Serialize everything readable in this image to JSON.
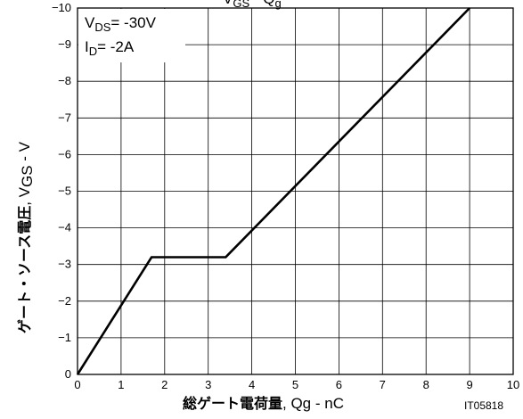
{
  "chart_data": {
    "type": "line",
    "title_fragment": {
      "main": "V",
      "sub": "GS",
      "rest": " - Q",
      "sub2": "g"
    },
    "xlabel": {
      "main": "総ゲート電荷量",
      "unit": ", Qg - nC"
    },
    "ylabel": {
      "main": "ゲート・ソース電圧",
      "unit_prefix": ", V",
      "unit_sub": "GS",
      "unit_suffix": " - V"
    },
    "xlim": [
      0,
      10
    ],
    "ylim": [
      0,
      -10
    ],
    "x_ticks": [
      "0",
      "1",
      "2",
      "3",
      "4",
      "5",
      "6",
      "7",
      "8",
      "9",
      "10"
    ],
    "y_ticks": [
      "0",
      "−1",
      "−2",
      "−3",
      "−4",
      "−5",
      "−6",
      "−7",
      "−8",
      "−9",
      "−10"
    ],
    "grid": true,
    "conditions": [
      {
        "main": "V",
        "sub": "DS",
        "rest": "= -30V"
      },
      {
        "main": "I",
        "sub": "D",
        "rest": "= -2A"
      }
    ],
    "series": [
      {
        "x": [
          0,
          1.7,
          3.4,
          9.0
        ],
        "y": [
          0,
          -3.2,
          -3.2,
          -10
        ]
      }
    ],
    "figure_id": "IT05818"
  }
}
